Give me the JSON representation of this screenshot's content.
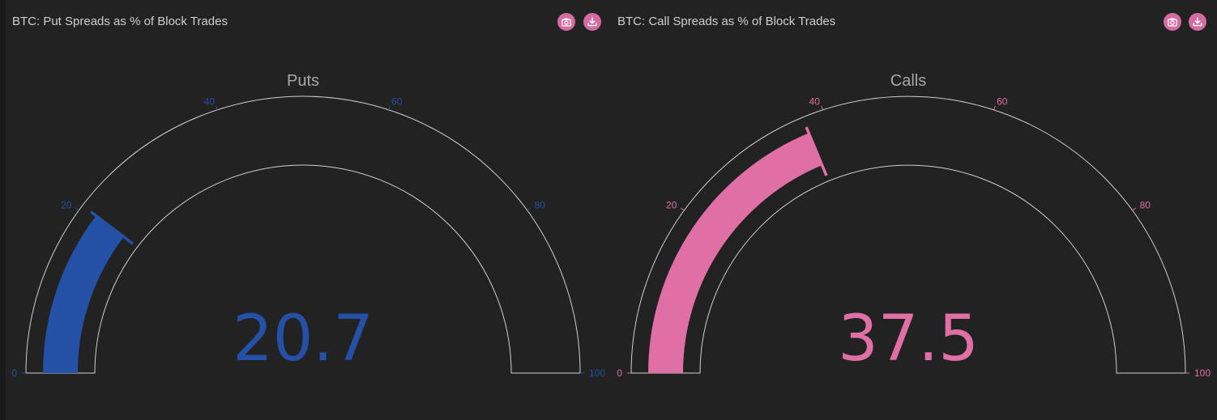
{
  "panels": [
    {
      "title": "BTC: Put Spreads as % of Block Trades",
      "chart_data": {
        "type": "gauge",
        "title": "Puts",
        "value": 20.7,
        "value_text": "20.7",
        "range": [
          0,
          100
        ],
        "ticks": [
          0,
          20,
          40,
          60,
          80,
          100
        ],
        "tick_labels": [
          "0",
          "20",
          "40",
          "60",
          "80",
          "100"
        ],
        "color": "#2450a6"
      }
    },
    {
      "title": "BTC: Call Spreads as % of Block Trades",
      "chart_data": {
        "type": "gauge",
        "title": "Calls",
        "value": 37.5,
        "value_text": "37.5",
        "range": [
          0,
          100
        ],
        "ticks": [
          0,
          20,
          40,
          60,
          80,
          100
        ],
        "tick_labels": [
          "0",
          "20",
          "40",
          "60",
          "80",
          "100"
        ],
        "color": "#e06fa6"
      }
    }
  ],
  "toolbar": {
    "camera_icon": "camera-icon",
    "download_icon": "download-icon",
    "button_color": "#d46ca1"
  },
  "theme": {
    "background": "#222222",
    "outline": "#cfcfcf"
  }
}
